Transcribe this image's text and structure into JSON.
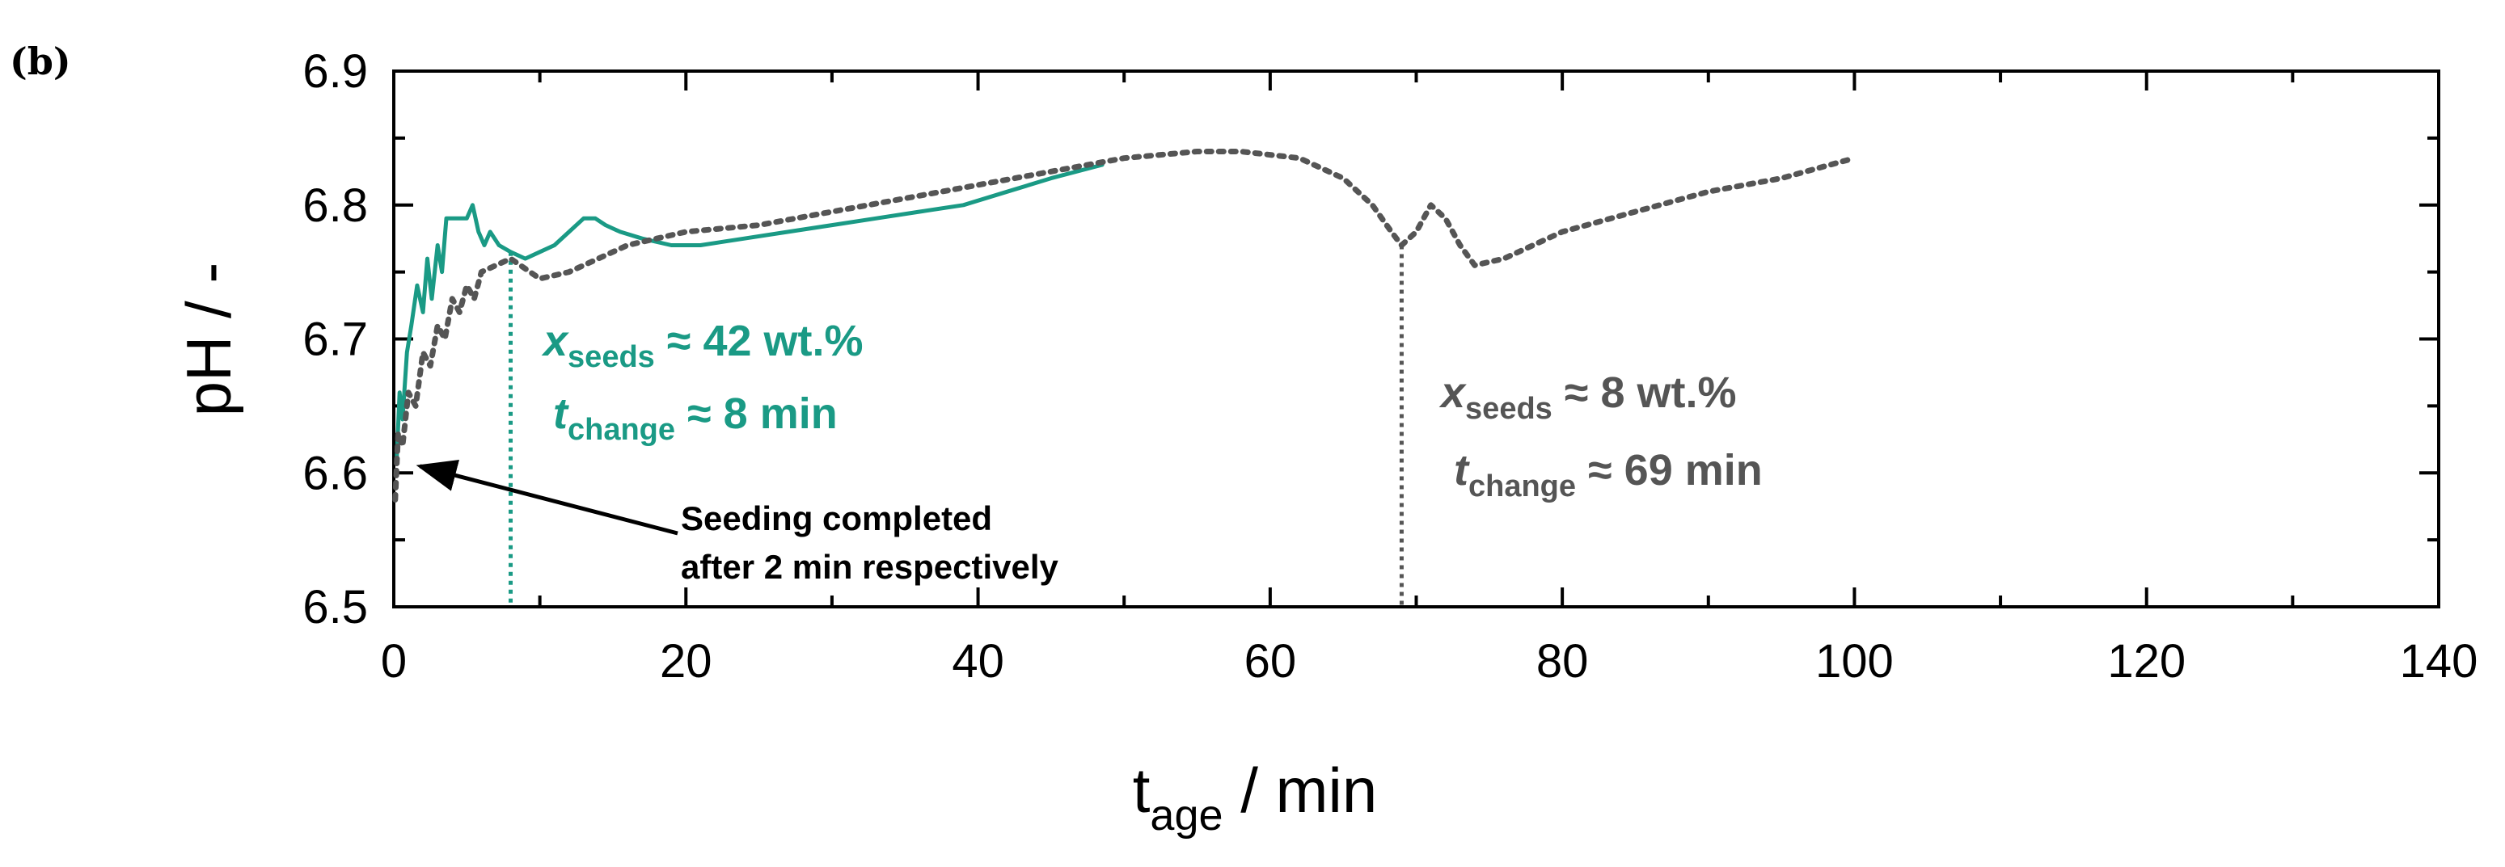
{
  "chart_data": {
    "type": "line",
    "panel_label": "(b)",
    "xlabel": {
      "main": "t",
      "sub": "age",
      "rest": " / min"
    },
    "ylabel": "pH / -",
    "xlim": [
      0,
      140
    ],
    "ylim": [
      6.5,
      6.9
    ],
    "x_ticks": [
      "0",
      "20",
      "40",
      "60",
      "80",
      "100",
      "120",
      "140"
    ],
    "y_ticks": [
      "6.5",
      "6.6",
      "6.7",
      "6.8",
      "6.9"
    ],
    "colors": {
      "teal": "#1a9a85",
      "gray": "#555555",
      "axis": "#000000"
    },
    "series": [
      {
        "name": "x_seeds ≈ 42 wt.%",
        "style": "solid",
        "color": "#1a9a85",
        "x": [
          0.2,
          0.4,
          0.6,
          0.9,
          1.2,
          1.6,
          2.0,
          2.3,
          2.6,
          3.0,
          3.3,
          3.6,
          4.0,
          4.5,
          5.0,
          5.4,
          5.8,
          6.2,
          6.6,
          7.2,
          8.0,
          9.0,
          10.0,
          11.0,
          12.0,
          13.0,
          13.8,
          14.5,
          15.5,
          17.0,
          19.0,
          21.0,
          24.0,
          27.0,
          30.0,
          33.0,
          36.0,
          39.0,
          42.0,
          45.0,
          48.5
        ],
        "y": [
          6.61,
          6.66,
          6.64,
          6.69,
          6.71,
          6.74,
          6.72,
          6.76,
          6.73,
          6.77,
          6.75,
          6.79,
          6.79,
          6.79,
          6.79,
          6.8,
          6.78,
          6.77,
          6.78,
          6.77,
          6.765,
          6.76,
          6.765,
          6.77,
          6.78,
          6.79,
          6.79,
          6.785,
          6.78,
          6.775,
          6.77,
          6.77,
          6.775,
          6.78,
          6.785,
          6.79,
          6.795,
          6.8,
          6.81,
          6.82,
          6.83
        ]
      },
      {
        "name": "x_seeds ≈ 8 wt.%",
        "style": "dotted",
        "color": "#555555",
        "x": [
          0.1,
          0.3,
          0.6,
          1.0,
          1.5,
          2.0,
          2.5,
          3.0,
          3.5,
          4.0,
          4.5,
          5.0,
          5.5,
          6.0,
          7.0,
          8.0,
          10.0,
          12.0,
          14.0,
          16.0,
          18.0,
          20.0,
          25.0,
          30.0,
          35.0,
          40.0,
          45.0,
          50.0,
          55.0,
          58.0,
          62.0,
          65.0,
          67.0,
          68.3,
          69.0,
          70.0,
          71.0,
          72.0,
          73.0,
          74.0,
          76.0,
          80.0,
          85.0,
          90.0,
          95.0,
          100.0
        ],
        "y": [
          6.58,
          6.63,
          6.62,
          6.66,
          6.65,
          6.69,
          6.68,
          6.71,
          6.7,
          6.73,
          6.72,
          6.74,
          6.73,
          6.75,
          6.755,
          6.76,
          6.745,
          6.75,
          6.76,
          6.77,
          6.775,
          6.78,
          6.785,
          6.795,
          6.805,
          6.815,
          6.825,
          6.835,
          6.84,
          6.84,
          6.835,
          6.82,
          6.8,
          6.78,
          6.77,
          6.78,
          6.8,
          6.79,
          6.77,
          6.755,
          6.76,
          6.78,
          6.795,
          6.81,
          6.82,
          6.835
        ]
      }
    ],
    "markers": [
      {
        "series": "teal",
        "x": 8,
        "style": "dotted",
        "color": "#1a9a85"
      },
      {
        "series": "gray",
        "x": 69,
        "style": "dotted",
        "color": "#555555"
      }
    ],
    "annotations": {
      "teal": {
        "seeds_sym": "x",
        "seeds_sub": "seeds",
        "seeds_text": " ≈ 42 wt.%",
        "change_sym": "t",
        "change_sub": "change",
        "change_text": " ≈ 8 min"
      },
      "gray": {
        "seeds_sym": "x",
        "seeds_sub": "seeds",
        "seeds_text": " ≈ 8 wt.%",
        "change_sym": "t",
        "change_sub": "change",
        "change_text": " ≈ 69 min"
      },
      "seeding": {
        "line1": "Seeding completed",
        "line2": "after 2 min respectively",
        "arrow_target_x": 0.8,
        "arrow_target_y": 6.605
      }
    }
  }
}
